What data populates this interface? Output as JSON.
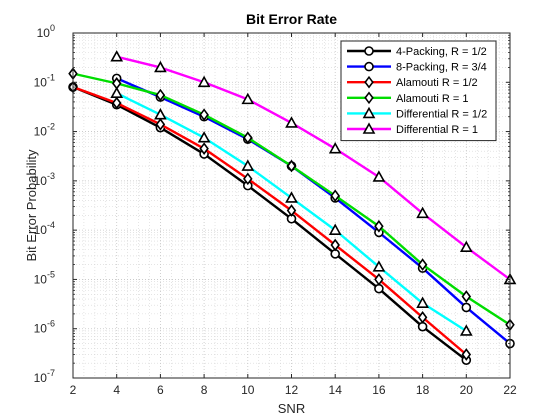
{
  "chart_data": {
    "type": "line",
    "title": "Bit Error Rate",
    "xlabel": "SNR",
    "ylabel": "Bit Error Probability",
    "xlim": [
      2,
      22
    ],
    "ylim": [
      1e-07,
      1
    ],
    "yscale": "log",
    "grid": true,
    "minor_grid": true,
    "legend_position": "top-right",
    "x_ticks": [
      2,
      4,
      6,
      8,
      10,
      12,
      14,
      16,
      18,
      20,
      22
    ],
    "x_tick_labels": [
      "2",
      "4",
      "6",
      "8",
      "10",
      "12",
      "14",
      "16",
      "18",
      "20",
      "22"
    ],
    "y_ticks": [
      {
        "value": 1e-07,
        "base": "10",
        "exp": "-7"
      },
      {
        "value": 1e-06,
        "base": "10",
        "exp": "-6"
      },
      {
        "value": 1e-05,
        "base": "10",
        "exp": "-5"
      },
      {
        "value": 0.0001,
        "base": "10",
        "exp": "-4"
      },
      {
        "value": 0.001,
        "base": "10",
        "exp": "-3"
      },
      {
        "value": 0.01,
        "base": "10",
        "exp": "-2"
      },
      {
        "value": 0.1,
        "base": "10",
        "exp": "-1"
      },
      {
        "value": 1,
        "base": "10",
        "exp": "0"
      }
    ],
    "series": [
      {
        "name": "4-Packing, R = 1/2",
        "color": "#000000",
        "marker": "circle",
        "x": [
          2,
          4,
          6,
          8,
          10,
          12,
          14,
          16,
          18,
          20
        ],
        "y": [
          0.08,
          0.035,
          0.012,
          0.0035,
          0.0008,
          0.00017,
          3.3e-05,
          6.5e-06,
          1.1e-06,
          2.3e-07
        ]
      },
      {
        "name": "8-Packing, R = 3/4",
        "color": "#0000ff",
        "marker": "circle",
        "x": [
          4,
          6,
          8,
          10,
          12,
          14,
          16,
          18,
          20,
          22
        ],
        "y": [
          0.12,
          0.05,
          0.02,
          0.007,
          0.002,
          0.00045,
          9e-05,
          1.7e-05,
          2.7e-06,
          5e-07
        ]
      },
      {
        "name": "Alamouti R = 1/2",
        "color": "#ff0000",
        "marker": "diamond",
        "x": [
          2,
          4,
          6,
          8,
          10,
          12,
          14,
          16,
          18,
          20
        ],
        "y": [
          0.08,
          0.038,
          0.014,
          0.0045,
          0.0011,
          0.00025,
          5e-05,
          1e-05,
          1.7e-06,
          3e-07
        ]
      },
      {
        "name": "Alamouti R = 1",
        "color": "#00dd00",
        "marker": "diamond",
        "x": [
          2,
          4,
          6,
          8,
          10,
          12,
          14,
          16,
          18,
          20,
          22
        ],
        "y": [
          0.15,
          0.095,
          0.055,
          0.022,
          0.0075,
          0.002,
          0.0005,
          0.00012,
          2e-05,
          4.5e-06,
          1.2e-06
        ]
      },
      {
        "name": "Differential R = 1/2",
        "color": "#00ffff",
        "marker": "triangle",
        "x": [
          4,
          6,
          8,
          10,
          12,
          14,
          16,
          18,
          20
        ],
        "y": [
          0.06,
          0.022,
          0.0075,
          0.002,
          0.00045,
          0.0001,
          1.8e-05,
          3.3e-06,
          9e-07
        ]
      },
      {
        "name": "Differential R = 1",
        "color": "#ff00ff",
        "marker": "triangle",
        "x": [
          4,
          6,
          8,
          10,
          12,
          14,
          16,
          18,
          20,
          22
        ],
        "y": [
          0.33,
          0.2,
          0.1,
          0.045,
          0.015,
          0.0045,
          0.0012,
          0.00022,
          4.5e-05,
          1e-05
        ]
      }
    ]
  }
}
